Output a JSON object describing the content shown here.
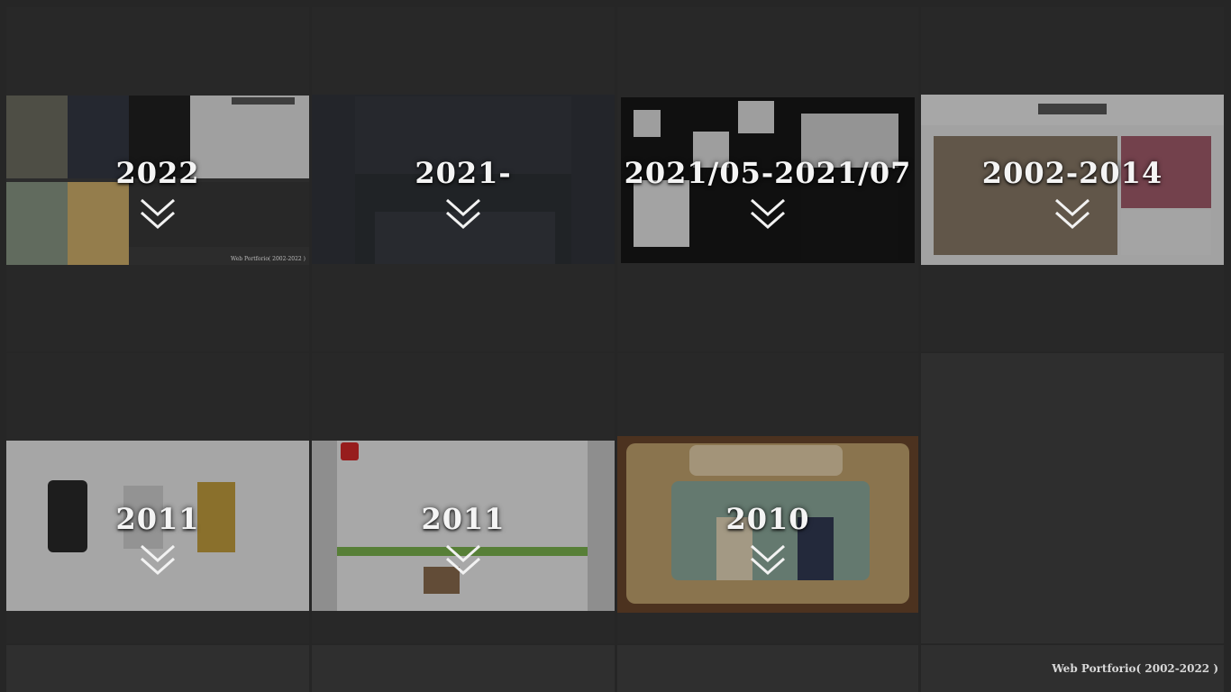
{
  "tiles": [
    {
      "year": "2022",
      "label": "Web Portforio( 2002-2022 )"
    },
    {
      "year": "2021-"
    },
    {
      "year": "2021/05-2021/07"
    },
    {
      "year": "2002-2014"
    },
    {
      "year": "2011"
    },
    {
      "year": "2011"
    },
    {
      "year": "2010"
    }
  ],
  "footer": {
    "text": "Web Portforio( 2002-2022 )"
  },
  "icons": {
    "expand": "double-chevron-down-icon"
  }
}
